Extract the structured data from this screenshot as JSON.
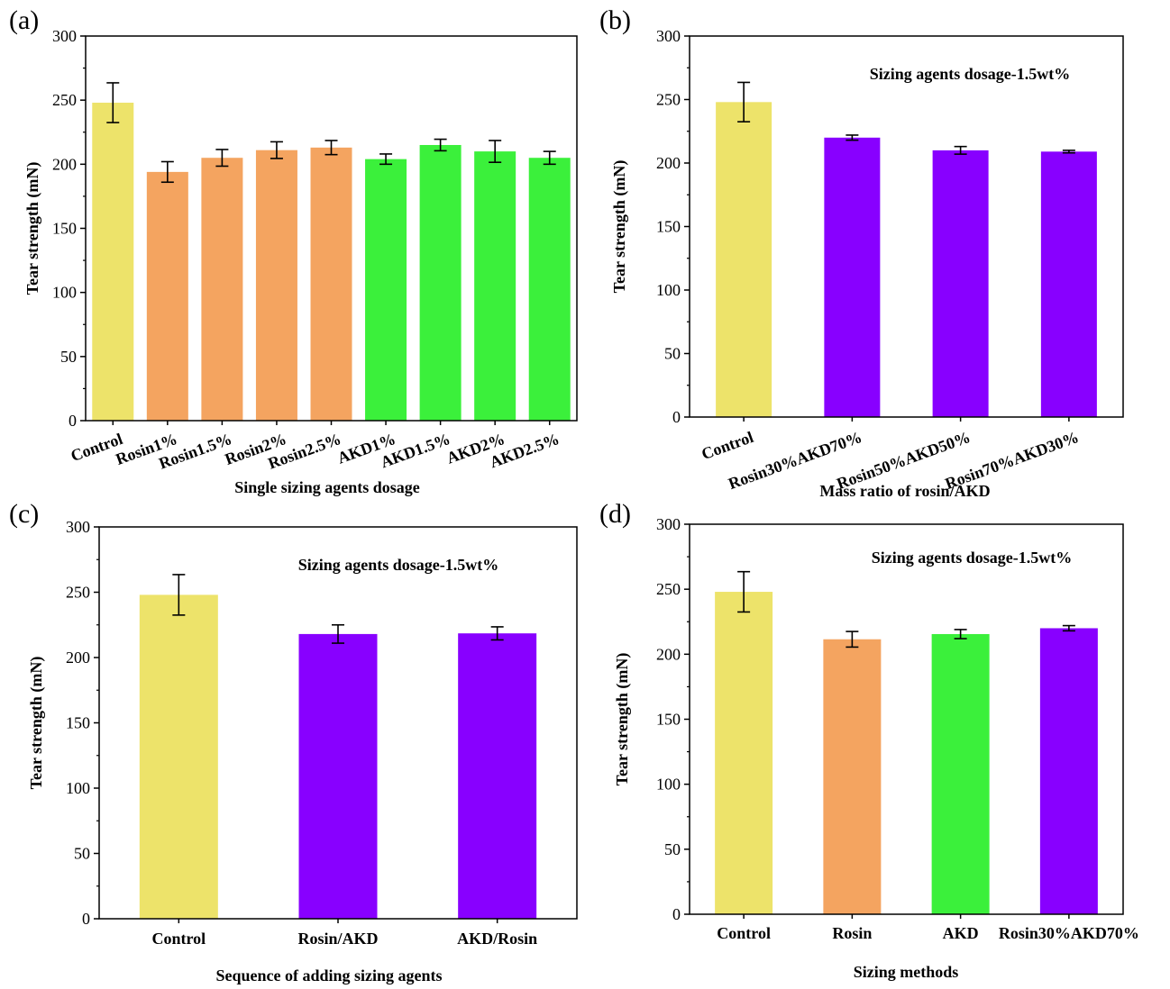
{
  "chart_data": [
    {
      "type": "bar",
      "panel": "(a)",
      "title": "",
      "xlabel": "Single sizing agents dosage",
      "ylabel": "Tear strength (mN)",
      "ylim": [
        0,
        300
      ],
      "yticks": [
        0,
        50,
        100,
        150,
        200,
        250,
        300
      ],
      "annotation": "",
      "categories": [
        "Control",
        "Rosin1%",
        "Rosin1.5%",
        "Rosin2%",
        "Rosin2.5%",
        "AKD1%",
        "AKD1.5%",
        "AKD2%",
        "AKD2.5%"
      ],
      "values": [
        248,
        194,
        205,
        211,
        213,
        204,
        215,
        210,
        205
      ],
      "errors": [
        15.5,
        8,
        6.5,
        6.5,
        5.5,
        4,
        4.5,
        8.5,
        5
      ],
      "colors": [
        "#ede36a",
        "#f4a460",
        "#f4a460",
        "#f4a460",
        "#f4a460",
        "#3bf03b",
        "#3bf03b",
        "#3bf03b",
        "#3bf03b"
      ],
      "label_rotation": -20
    },
    {
      "type": "bar",
      "panel": "(b)",
      "title": "",
      "xlabel": "Mass ratio of rosin/AKD",
      "ylabel": "Tear strength (mN)",
      "ylim": [
        0,
        300
      ],
      "yticks": [
        0,
        50,
        100,
        150,
        200,
        250,
        300
      ],
      "annotation": "Sizing agents dosage-1.5wt%",
      "categories": [
        "Control",
        "Rosin30%AKD70%",
        "Rosin50%AKD50%",
        "Rosin70%AKD30%"
      ],
      "values": [
        248,
        220,
        210,
        209
      ],
      "errors": [
        15.5,
        2,
        3,
        1
      ],
      "colors": [
        "#ede36a",
        "#8800ff",
        "#8800ff",
        "#8800ff"
      ],
      "label_rotation": -20
    },
    {
      "type": "bar",
      "panel": "(c)",
      "title": "",
      "xlabel": "Sequence of adding sizing agents",
      "ylabel": "Tear strength (mN)",
      "ylim": [
        0,
        300
      ],
      "yticks": [
        0,
        50,
        100,
        150,
        200,
        250,
        300
      ],
      "annotation": "Sizing agents dosage-1.5wt%",
      "categories": [
        "Control",
        "Rosin/AKD",
        "AKD/Rosin"
      ],
      "values": [
        248,
        218,
        218.5
      ],
      "errors": [
        15.5,
        7,
        5
      ],
      "colors": [
        "#ede36a",
        "#8800ff",
        "#8800ff"
      ],
      "label_rotation": 0
    },
    {
      "type": "bar",
      "panel": "(d)",
      "title": "",
      "xlabel": "Sizing methods",
      "ylabel": "Tear strength (mN)",
      "ylim": [
        0,
        300
      ],
      "yticks": [
        0,
        50,
        100,
        150,
        200,
        250,
        300
      ],
      "annotation": "Sizing agents dosage-1.5wt%",
      "categories": [
        "Control",
        "Rosin",
        "AKD",
        "Rosin30%AKD70%"
      ],
      "values": [
        248,
        211.5,
        215.5,
        220
      ],
      "errors": [
        15.5,
        6,
        3.5,
        2
      ],
      "colors": [
        "#ede36a",
        "#f4a460",
        "#3bf03b",
        "#8800ff"
      ],
      "label_rotation": 0
    }
  ]
}
